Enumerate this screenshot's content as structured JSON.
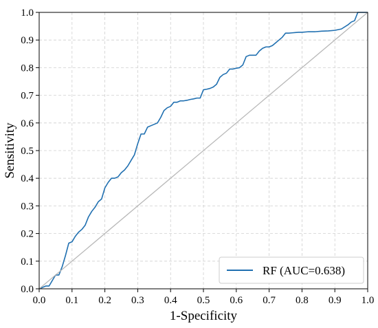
{
  "chart_data": {
    "type": "line",
    "title": "",
    "xlabel": "1-Specificity",
    "ylabel": "Sensitivity",
    "xlim": [
      0.0,
      1.0
    ],
    "ylim": [
      0.0,
      1.0
    ],
    "xticks": [
      0.0,
      0.1,
      0.2,
      0.3,
      0.4,
      0.5,
      0.6,
      0.7,
      0.8,
      0.9,
      1.0
    ],
    "yticks": [
      0.0,
      0.1,
      0.2,
      0.3,
      0.4,
      0.5,
      0.6,
      0.7,
      0.8,
      0.9,
      1.0
    ],
    "xtick_labels": [
      "0.0",
      "0.1",
      "0.2",
      "0.3",
      "0.4",
      "0.5",
      "0.6",
      "0.7",
      "0.8",
      "0.9",
      "1.0"
    ],
    "ytick_labels": [
      "0.0",
      "0.1",
      "0.2",
      "0.3",
      "0.4",
      "0.5",
      "0.6",
      "0.7",
      "0.8",
      "0.9",
      "1.0"
    ],
    "grid": true,
    "legend_position": "bottom-right",
    "series": [
      {
        "name": "RF (AUC=0.638)",
        "color": "#1f6fb0",
        "x": [
          0.0,
          0.02,
          0.03,
          0.05,
          0.06,
          0.07,
          0.08,
          0.09,
          0.1,
          0.11,
          0.12,
          0.13,
          0.14,
          0.15,
          0.16,
          0.17,
          0.18,
          0.19,
          0.2,
          0.205,
          0.21,
          0.22,
          0.23,
          0.24,
          0.25,
          0.26,
          0.27,
          0.28,
          0.29,
          0.3,
          0.31,
          0.32,
          0.33,
          0.34,
          0.35,
          0.36,
          0.37,
          0.38,
          0.39,
          0.4,
          0.41,
          0.42,
          0.43,
          0.44,
          0.45,
          0.46,
          0.47,
          0.48,
          0.49,
          0.5,
          0.51,
          0.52,
          0.53,
          0.54,
          0.55,
          0.56,
          0.57,
          0.58,
          0.59,
          0.6,
          0.61,
          0.62,
          0.63,
          0.64,
          0.65,
          0.66,
          0.67,
          0.68,
          0.69,
          0.7,
          0.71,
          0.72,
          0.73,
          0.74,
          0.75,
          0.76,
          0.77,
          0.78,
          0.79,
          0.8,
          0.82,
          0.84,
          0.86,
          0.88,
          0.9,
          0.92,
          0.94,
          0.95,
          0.96,
          0.97,
          0.98,
          1.0
        ],
        "y": [
          0.0,
          0.01,
          0.01,
          0.05,
          0.05,
          0.08,
          0.12,
          0.165,
          0.17,
          0.19,
          0.205,
          0.215,
          0.23,
          0.26,
          0.28,
          0.295,
          0.315,
          0.325,
          0.365,
          0.375,
          0.385,
          0.4,
          0.4,
          0.405,
          0.42,
          0.43,
          0.445,
          0.465,
          0.485,
          0.525,
          0.56,
          0.56,
          0.585,
          0.59,
          0.595,
          0.6,
          0.62,
          0.645,
          0.655,
          0.66,
          0.675,
          0.675,
          0.68,
          0.68,
          0.682,
          0.685,
          0.687,
          0.69,
          0.69,
          0.72,
          0.722,
          0.725,
          0.73,
          0.74,
          0.765,
          0.775,
          0.78,
          0.795,
          0.795,
          0.798,
          0.8,
          0.81,
          0.84,
          0.845,
          0.845,
          0.845,
          0.86,
          0.87,
          0.875,
          0.875,
          0.88,
          0.89,
          0.9,
          0.91,
          0.925,
          0.925,
          0.926,
          0.927,
          0.928,
          0.928,
          0.93,
          0.93,
          0.932,
          0.933,
          0.935,
          0.94,
          0.955,
          0.965,
          0.97,
          1.0,
          1.0,
          1.0
        ]
      },
      {
        "name": "",
        "color": "#b8b8b8",
        "x": [
          0.0,
          1.0
        ],
        "y": [
          0.0,
          1.0
        ]
      }
    ],
    "legend": {
      "label": "RF (AUC=0.638)",
      "color": "#1f6fb0"
    }
  }
}
